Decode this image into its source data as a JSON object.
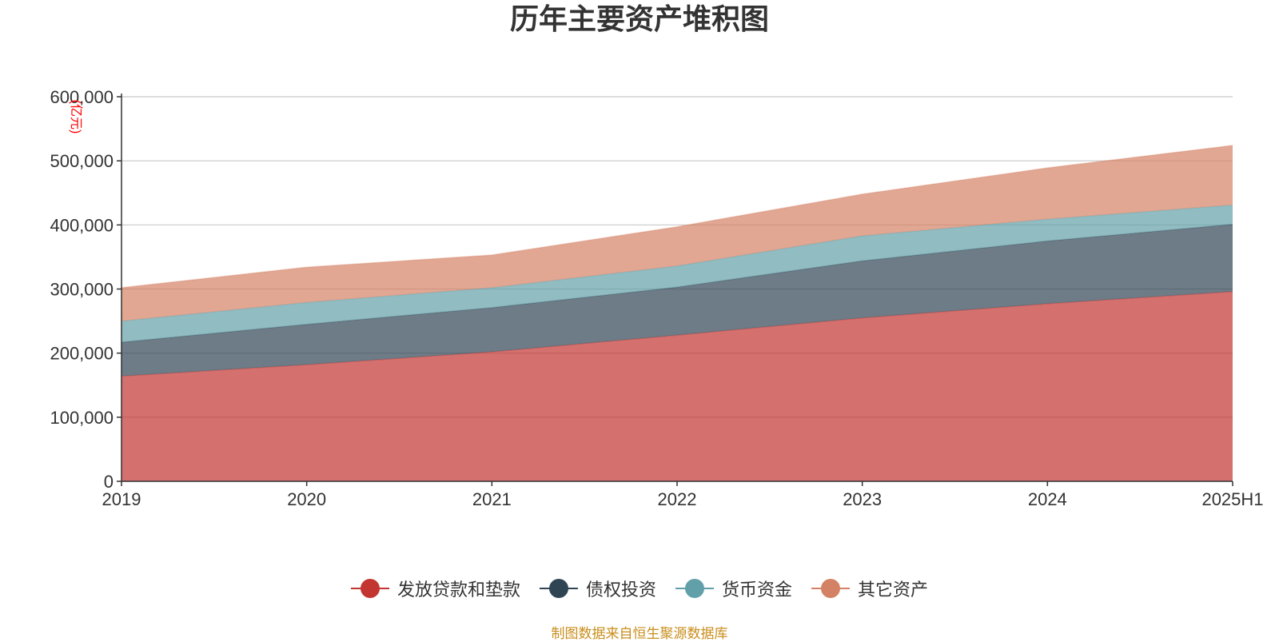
{
  "chart_data": {
    "type": "area",
    "stacked": true,
    "title": "历年主要资产堆积图",
    "unit_label": "(亿元)",
    "categories": [
      "2019",
      "2020",
      "2021",
      "2022",
      "2023",
      "2024",
      "2025H1"
    ],
    "ylim": [
      0,
      600000
    ],
    "yticks": [
      0,
      100000,
      200000,
      300000,
      400000,
      500000,
      600000
    ],
    "ytick_labels": [
      "0",
      "100,000",
      "200,000",
      "300,000",
      "400,000",
      "500,000",
      "600,000"
    ],
    "grid": true,
    "legend_position": "bottom",
    "series": [
      {
        "name": "发放贷款和垫款",
        "color": "#c23531",
        "values": [
          164000,
          182000,
          202000,
          228000,
          255000,
          277000,
          296000
        ]
      },
      {
        "name": "债权投资",
        "color": "#2f4554",
        "values": [
          53000,
          63000,
          69000,
          75000,
          89000,
          98000,
          105000
        ]
      },
      {
        "name": "货币资金",
        "color": "#61a0a8",
        "values": [
          33000,
          34000,
          31000,
          33000,
          39000,
          34000,
          30000
        ]
      },
      {
        "name": "其它资产",
        "color": "#d48265",
        "values": [
          52000,
          55000,
          51000,
          61000,
          65000,
          80000,
          93000
        ]
      }
    ]
  },
  "footer": {
    "source": "制图数据来自恒生聚源数据库"
  }
}
